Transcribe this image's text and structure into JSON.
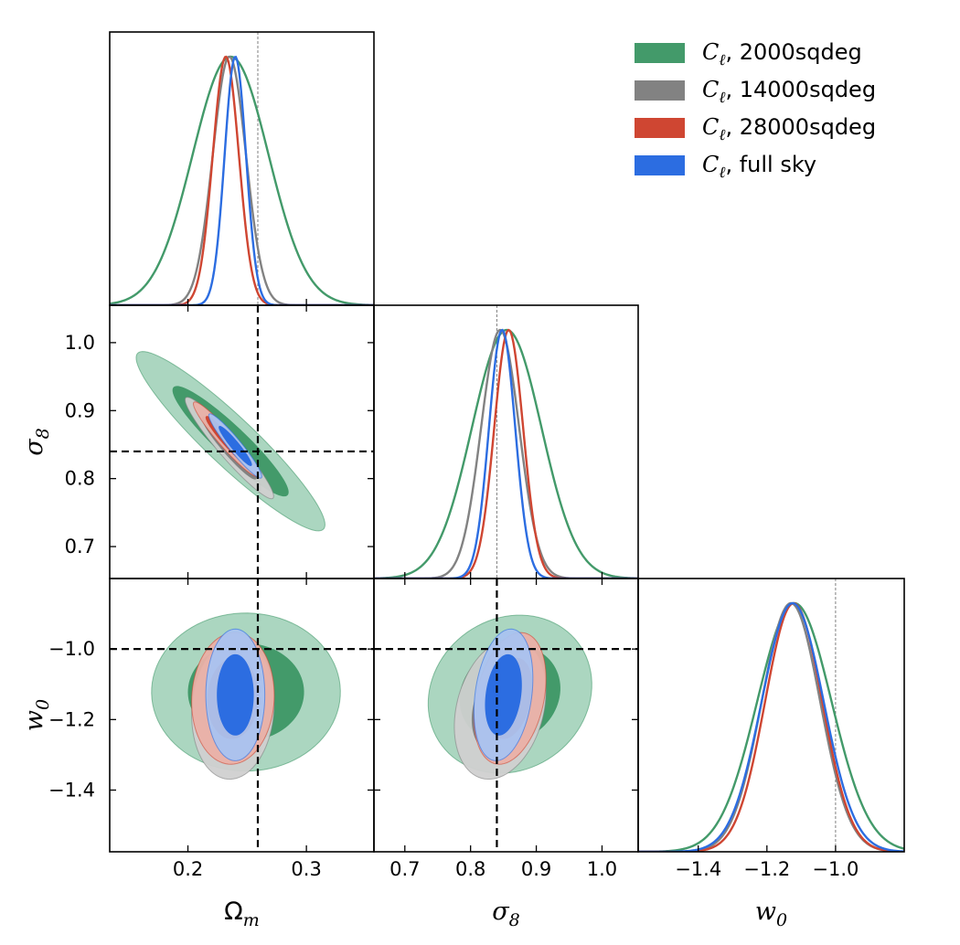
{
  "chart_data": {
    "type": "corner-plot",
    "title": "",
    "parameters": [
      {
        "name": "Omega_m",
        "label": "Ω",
        "sub": "m",
        "fiducial": 0.259,
        "range": [
          0.134,
          0.357
        ],
        "ticks": [
          {
            "v": 0.2,
            "t": "0.2"
          },
          {
            "v": 0.3,
            "t": "0.3"
          }
        ]
      },
      {
        "name": "sigma_8",
        "label": "σ",
        "sub": "8",
        "fiducial": 0.84,
        "range": [
          0.653,
          1.055
        ],
        "ticks": [
          {
            "v": 0.7,
            "t": "0.7"
          },
          {
            "v": 0.8,
            "t": "0.8"
          },
          {
            "v": 0.9,
            "t": "0.9"
          },
          {
            "v": 1.0,
            "t": "1.0"
          }
        ]
      },
      {
        "name": "w_0",
        "label": "w",
        "sub": "0",
        "fiducial": -1.0,
        "range": [
          -1.575,
          -0.8
        ],
        "ticks": [
          {
            "v": -1.4,
            "t": "−1.4"
          },
          {
            "v": -1.2,
            "t": "−1.2"
          },
          {
            "v": -1.0,
            "t": "−1.0"
          }
        ]
      }
    ],
    "series": [
      {
        "name": "2000sqdeg",
        "label_symbol": "C",
        "label_sub": "ℓ",
        "label_text": ", 2000sqdeg",
        "color": "#439a6a",
        "fill1": "#a6d4bd",
        "fill2": "#439a6a",
        "marginals": [
          {
            "mean": 0.236,
            "sd": 0.032
          },
          {
            "mean": 0.855,
            "sd": 0.053
          },
          {
            "mean": -1.12,
            "sd": 0.108
          }
        ],
        "contours": {
          "om_s8": {
            "sd1": 0.032,
            "sd2": 0.053,
            "rho": -0.93
          },
          "om_w": {
            "m1": 0.249,
            "m2": -1.122,
            "sd1": 0.032,
            "sd2": 0.09,
            "rho": 0.0
          },
          "s8_w": {
            "m1": 0.86,
            "m2": -1.128,
            "sd1": 0.05,
            "sd2": 0.09,
            "rho": 0.12
          }
        }
      },
      {
        "name": "14000sqdeg",
        "label_symbol": "C",
        "label_sub": "ℓ",
        "label_text": ", 14000sqdeg",
        "color": "#828282",
        "fill1": "#d0d0d0",
        "fill2": "#828282",
        "marginals": [
          {
            "mean": 0.235,
            "sd": 0.014
          },
          {
            "mean": 0.845,
            "sd": 0.029
          },
          {
            "mean": -1.13,
            "sd": 0.085
          }
        ],
        "contours": {
          "om_s8": {
            "sd1": 0.015,
            "sd2": 0.03,
            "rho": -0.95
          },
          "om_w": {
            "m1": 0.238,
            "m2": -1.17,
            "sd1": 0.014,
            "sd2": 0.08,
            "rho": 0.08
          },
          "s8_w": {
            "m1": 0.845,
            "m2": -1.17,
            "sd1": 0.028,
            "sd2": 0.08,
            "rho": 0.25
          }
        }
      },
      {
        "name": "28000sqdeg",
        "label_symbol": "C",
        "label_sub": "ℓ",
        "label_text": ", 28000sqdeg",
        "color": "#cf4632",
        "fill1": "#eab0a6",
        "fill2": "#cf4632",
        "marginals": [
          {
            "mean": 0.232,
            "sd": 0.011
          },
          {
            "mean": 0.858,
            "sd": 0.022
          },
          {
            "mean": -1.122,
            "sd": 0.083
          }
        ],
        "contours": {
          "om_s8": {
            "sd1": 0.011,
            "sd2": 0.022,
            "rho": -0.95
          },
          "om_w": {
            "m1": 0.238,
            "m2": -1.14,
            "sd1": 0.014,
            "sd2": 0.075,
            "rho": 0.05
          },
          "s8_w": {
            "m1": 0.86,
            "m2": -1.14,
            "sd1": 0.022,
            "sd2": 0.075,
            "rho": 0.3
          }
        }
      },
      {
        "name": "full sky",
        "label_symbol": "C",
        "label_sub": "ℓ",
        "label_text": ", full sky",
        "color": "#2c6de1",
        "fill1": "#a9c3f0",
        "fill2": "#2c6de1",
        "marginals": [
          {
            "mean": 0.24,
            "sd": 0.009
          },
          {
            "mean": 0.848,
            "sd": 0.02
          },
          {
            "mean": -1.125,
            "sd": 0.09
          }
        ],
        "contours": {
          "om_s8": {
            "sd1": 0.009,
            "sd2": 0.019,
            "rho": -0.95
          },
          "om_w": {
            "m1": 0.24,
            "m2": -1.13,
            "sd1": 0.01,
            "sd2": 0.075,
            "rho": 0.0
          },
          "s8_w": {
            "m1": 0.85,
            "m2": -1.13,
            "sd1": 0.018,
            "sd2": 0.075,
            "rho": 0.25
          }
        }
      }
    ],
    "legend": {
      "placement": "top-right"
    }
  }
}
